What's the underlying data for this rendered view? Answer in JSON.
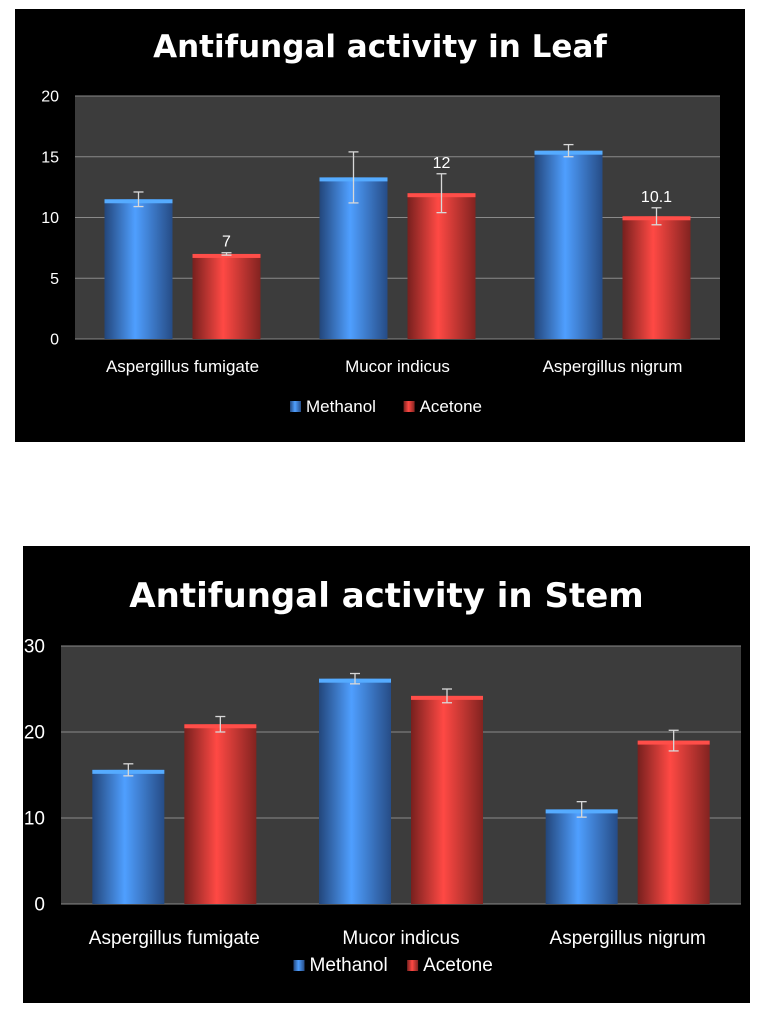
{
  "colors": {
    "methanol": "#3f7fe0",
    "acetone": "#d93a36",
    "plot_area": "#3c3c3c",
    "gridline": "#8a8a8a",
    "text": "#ffffff",
    "error_bar": "#d8d8d8"
  },
  "chart_data": [
    {
      "id": "leaf",
      "type": "bar",
      "title": "Antifungal activity in Leaf",
      "xlabel": "",
      "ylabel": "",
      "categories": [
        "Aspergillus fumigate",
        "Mucor indicus",
        "Aspergillus nigrum"
      ],
      "ylim": [
        0,
        20
      ],
      "yticks": [
        "0",
        "5",
        "10",
        "15",
        "20"
      ],
      "grid": true,
      "legend": "bottom",
      "series": [
        {
          "name": "Methanol",
          "color_key": "methanol",
          "values": [
            11.5,
            13.3,
            15.5
          ],
          "errors": [
            0.6,
            2.1,
            0.5
          ],
          "labels": [
            "",
            "",
            ""
          ]
        },
        {
          "name": "Acetone",
          "color_key": "acetone",
          "values": [
            7,
            12,
            10.1
          ],
          "errors": [
            0.1,
            1.6,
            0.7
          ],
          "labels": [
            "7",
            "12",
            "10.1"
          ]
        }
      ]
    },
    {
      "id": "stem",
      "type": "bar",
      "title": "Antifungal activity in Stem",
      "xlabel": "",
      "ylabel": "",
      "categories": [
        "Aspergillus fumigate",
        "Mucor indicus",
        "Aspergillus nigrum"
      ],
      "ylim": [
        0,
        30
      ],
      "yticks": [
        "0",
        "10",
        "20",
        "30"
      ],
      "grid": true,
      "legend": "bottom",
      "series": [
        {
          "name": "Methanol",
          "color_key": "methanol",
          "values": [
            15.6,
            26.2,
            11.0
          ],
          "errors": [
            0.7,
            0.6,
            0.9
          ],
          "labels": [
            "",
            "",
            ""
          ]
        },
        {
          "name": "Acetone",
          "color_key": "acetone",
          "values": [
            20.9,
            24.2,
            19.0
          ],
          "errors": [
            0.9,
            0.8,
            1.2
          ],
          "labels": [
            "",
            "",
            ""
          ]
        }
      ]
    }
  ]
}
